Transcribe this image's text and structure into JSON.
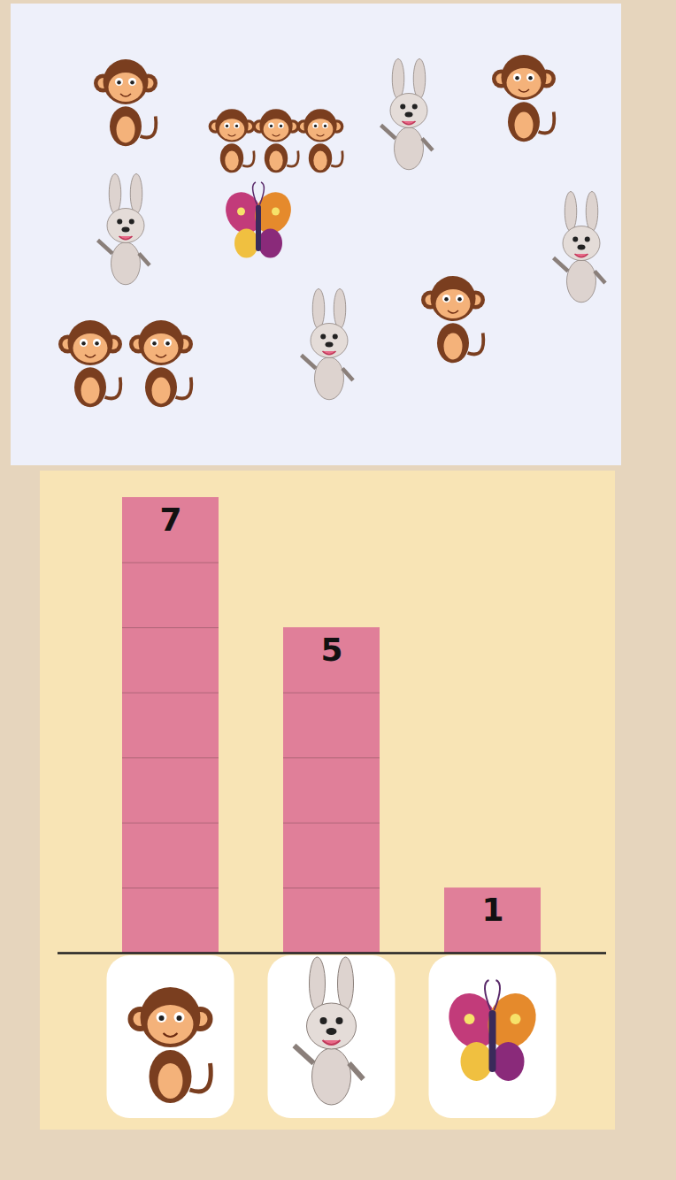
{
  "chart_data": {
    "type": "bar",
    "categories": [
      null,
      null,
      null
    ],
    "values": [
      7,
      5,
      1
    ],
    "color": "#e07f99",
    "ylim": [
      0,
      7
    ],
    "data_labels": true,
    "tick_labels": false,
    "grid": false
  }
}
